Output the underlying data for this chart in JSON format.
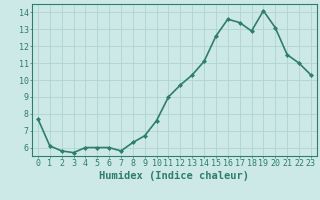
{
  "x": [
    0,
    1,
    2,
    3,
    4,
    5,
    6,
    7,
    8,
    9,
    10,
    11,
    12,
    13,
    14,
    15,
    16,
    17,
    18,
    19,
    20,
    21,
    22,
    23
  ],
  "y": [
    7.7,
    6.1,
    5.8,
    5.7,
    6.0,
    6.0,
    6.0,
    5.8,
    6.3,
    6.7,
    7.6,
    9.0,
    9.7,
    10.3,
    11.1,
    12.6,
    13.6,
    13.4,
    12.9,
    14.1,
    13.1,
    11.5,
    11.0,
    10.3
  ],
  "line_color": "#2e7d6e",
  "marker": "D",
  "marker_size": 2.0,
  "bg_color": "#cce9e7",
  "grid_color": "#b0d4d2",
  "xlabel": "Humidex (Indice chaleur)",
  "xlim": [
    -0.5,
    23.5
  ],
  "ylim": [
    5.5,
    14.5
  ],
  "yticks": [
    6,
    7,
    8,
    9,
    10,
    11,
    12,
    13,
    14
  ],
  "xticks": [
    0,
    1,
    2,
    3,
    4,
    5,
    6,
    7,
    8,
    9,
    10,
    11,
    12,
    13,
    14,
    15,
    16,
    17,
    18,
    19,
    20,
    21,
    22,
    23
  ],
  "tick_label_size": 6.0,
  "xlabel_size": 7.5,
  "line_width": 1.2,
  "axis_color": "#2e7d6e",
  "title": ""
}
